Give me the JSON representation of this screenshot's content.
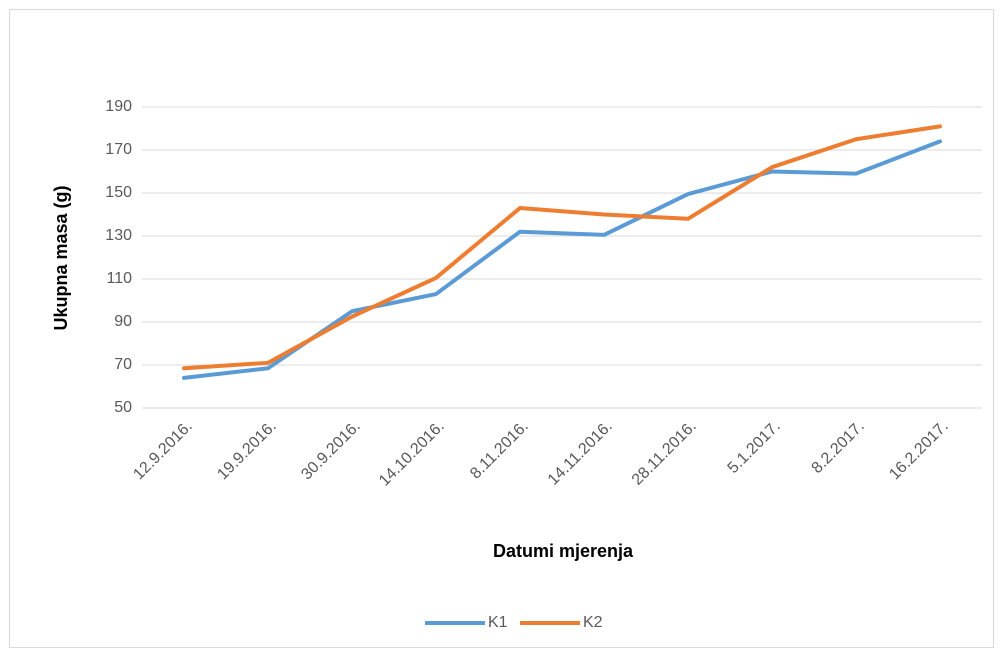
{
  "chart_data": {
    "type": "line",
    "x_label": "Datumi mjerenja",
    "y_label": "Ukupna masa (g)",
    "categories": [
      "12.9.2016.",
      "19.9.2016.",
      "30.9.2016.",
      "14.10.2016.",
      "8.11.2016.",
      "14.11.2016.",
      "28.11.2016.",
      "5.1.2017.",
      "8.2.2017.",
      "16.2.2017."
    ],
    "series": [
      {
        "name": "K1",
        "color": "#5b9bd5",
        "values": [
          64,
          68.5,
          95,
          103,
          132,
          130.5,
          149.5,
          160,
          159,
          174
        ]
      },
      {
        "name": "K2",
        "color": "#ed7d31",
        "values": [
          68.5,
          71,
          92.5,
          110.5,
          143,
          140,
          138,
          162,
          175,
          181
        ]
      }
    ],
    "ylim": [
      50,
      190
    ],
    "yticks": [
      50,
      70,
      90,
      110,
      130,
      150,
      170,
      190
    ],
    "grid": true,
    "legend": "bottom"
  }
}
